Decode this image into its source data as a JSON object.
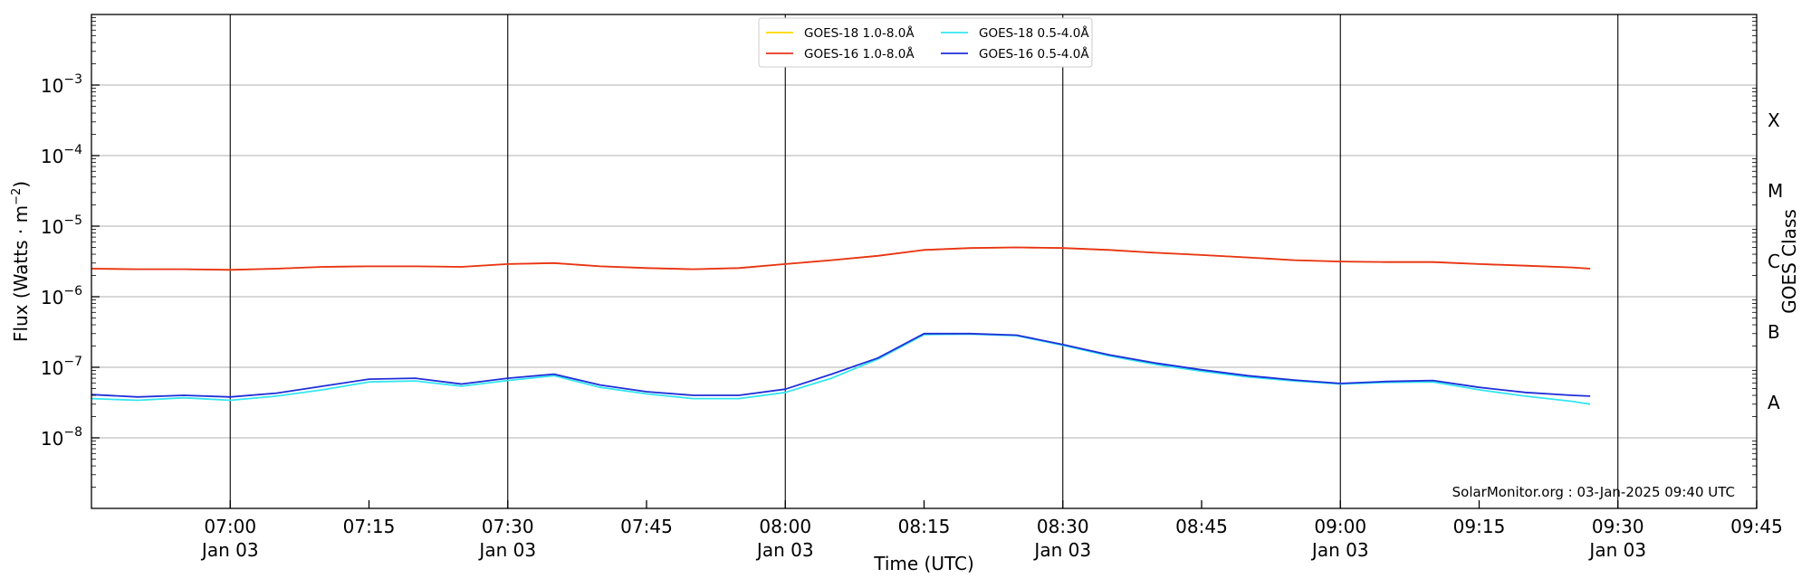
{
  "chart_data": {
    "type": "line",
    "xlabel": "Time (UTC)",
    "ylabel_main": "Flux (Watts · m",
    "ylabel_sup": "−2",
    "ylabel_close": ")",
    "y2label": "GOES Class",
    "y_scale": "log",
    "ylim": [
      1e-09,
      0.01
    ],
    "xlim": [
      "06:45",
      "09:45"
    ],
    "y_ticks": [
      {
        "value": 1e-08,
        "mant": "10",
        "exp": "−8"
      },
      {
        "value": 1e-07,
        "mant": "10",
        "exp": "−7"
      },
      {
        "value": 1e-06,
        "mant": "10",
        "exp": "−6"
      },
      {
        "value": 1e-05,
        "mant": "10",
        "exp": "−5"
      },
      {
        "value": 0.0001,
        "mant": "10",
        "exp": "−4"
      },
      {
        "value": 0.001,
        "mant": "10",
        "exp": "−3"
      }
    ],
    "goes_classes": [
      {
        "label": "A",
        "value": 3.162e-08
      },
      {
        "label": "B",
        "value": 3.162e-07
      },
      {
        "label": "C",
        "value": 3.162e-06
      },
      {
        "label": "M",
        "value": 3.162e-05
      },
      {
        "label": "X",
        "value": 0.0003162
      }
    ],
    "x_ticks": [
      {
        "time": "07:00",
        "date": "Jan 03"
      },
      {
        "time": "07:15",
        "date": ""
      },
      {
        "time": "07:30",
        "date": "Jan 03"
      },
      {
        "time": "07:45",
        "date": ""
      },
      {
        "time": "08:00",
        "date": "Jan 03"
      },
      {
        "time": "08:15",
        "date": ""
      },
      {
        "time": "08:30",
        "date": "Jan 03"
      },
      {
        "time": "08:45",
        "date": ""
      },
      {
        "time": "09:00",
        "date": "Jan 03"
      },
      {
        "time": "09:15",
        "date": ""
      },
      {
        "time": "09:30",
        "date": "Jan 03"
      },
      {
        "time": "09:45",
        "date": ""
      }
    ],
    "vlines": [
      "07:00",
      "07:30",
      "08:00",
      "08:30",
      "09:00",
      "09:30"
    ],
    "grid": "horizontal at decades",
    "legend_position": "top-center",
    "annotation": "SolarMonitor.org : 03-Jan-2025 09:40 UTC",
    "x": [
      "06:45",
      "06:50",
      "06:55",
      "07:00",
      "07:05",
      "07:10",
      "07:15",
      "07:20",
      "07:25",
      "07:30",
      "07:35",
      "07:40",
      "07:45",
      "07:50",
      "07:55",
      "08:00",
      "08:05",
      "08:10",
      "08:15",
      "08:20",
      "08:25",
      "08:30",
      "08:35",
      "08:40",
      "08:45",
      "08:50",
      "08:55",
      "09:00",
      "09:05",
      "09:10",
      "09:15",
      "09:20",
      "09:25",
      "09:27"
    ],
    "series": [
      {
        "name": "GOES-18 1.0-8.0Å",
        "color": "#ffd700",
        "values": [
          2.5e-06,
          2.45e-06,
          2.45e-06,
          2.4e-06,
          2.5e-06,
          2.65e-06,
          2.7e-06,
          2.7e-06,
          2.65e-06,
          2.9e-06,
          3e-06,
          2.7e-06,
          2.55e-06,
          2.45e-06,
          2.55e-06,
          2.9e-06,
          3.3e-06,
          3.8e-06,
          4.6e-06,
          4.9e-06,
          5e-06,
          4.9e-06,
          4.6e-06,
          4.2e-06,
          3.9e-06,
          3.6e-06,
          3.3e-06,
          3.15e-06,
          3.1e-06,
          3.1e-06,
          2.9e-06,
          2.75e-06,
          2.6e-06,
          2.5e-06
        ]
      },
      {
        "name": "GOES-16 1.0-8.0Å",
        "color": "#e8321e",
        "values": [
          2.5e-06,
          2.45e-06,
          2.45e-06,
          2.4e-06,
          2.5e-06,
          2.65e-06,
          2.7e-06,
          2.7e-06,
          2.65e-06,
          2.9e-06,
          3e-06,
          2.7e-06,
          2.55e-06,
          2.45e-06,
          2.55e-06,
          2.9e-06,
          3.3e-06,
          3.8e-06,
          4.6e-06,
          4.9e-06,
          5e-06,
          4.9e-06,
          4.6e-06,
          4.2e-06,
          3.9e-06,
          3.6e-06,
          3.3e-06,
          3.15e-06,
          3.1e-06,
          3.1e-06,
          2.9e-06,
          2.75e-06,
          2.6e-06,
          2.5e-06
        ]
      },
      {
        "name": "GOES-18 0.5-4.0Å",
        "color": "#33e6f0",
        "values": [
          3.6e-08,
          3.4e-08,
          3.7e-08,
          3.4e-08,
          3.9e-08,
          4.8e-08,
          6.2e-08,
          6.4e-08,
          5.4e-08,
          6.5e-08,
          7.6e-08,
          5.2e-08,
          4.2e-08,
          3.6e-08,
          3.6e-08,
          4.4e-08,
          7e-08,
          1.3e-07,
          2.9e-07,
          2.95e-07,
          2.8e-07,
          2.05e-07,
          1.45e-07,
          1.1e-07,
          8.8e-08,
          7.3e-08,
          6.4e-08,
          5.8e-08,
          6.1e-08,
          6.2e-08,
          4.8e-08,
          3.9e-08,
          3.3e-08,
          3e-08
        ]
      },
      {
        "name": "GOES-16 0.5-4.0Å",
        "color": "#1f2fd8",
        "values": [
          4.1e-08,
          3.8e-08,
          4e-08,
          3.8e-08,
          4.3e-08,
          5.4e-08,
          6.8e-08,
          7e-08,
          5.8e-08,
          7e-08,
          8e-08,
          5.6e-08,
          4.5e-08,
          4e-08,
          4e-08,
          4.9e-08,
          8e-08,
          1.35e-07,
          3e-07,
          3e-07,
          2.85e-07,
          2.1e-07,
          1.5e-07,
          1.15e-07,
          9.2e-08,
          7.6e-08,
          6.6e-08,
          5.9e-08,
          6.3e-08,
          6.5e-08,
          5.2e-08,
          4.4e-08,
          4e-08,
          3.9e-08
        ]
      }
    ]
  }
}
